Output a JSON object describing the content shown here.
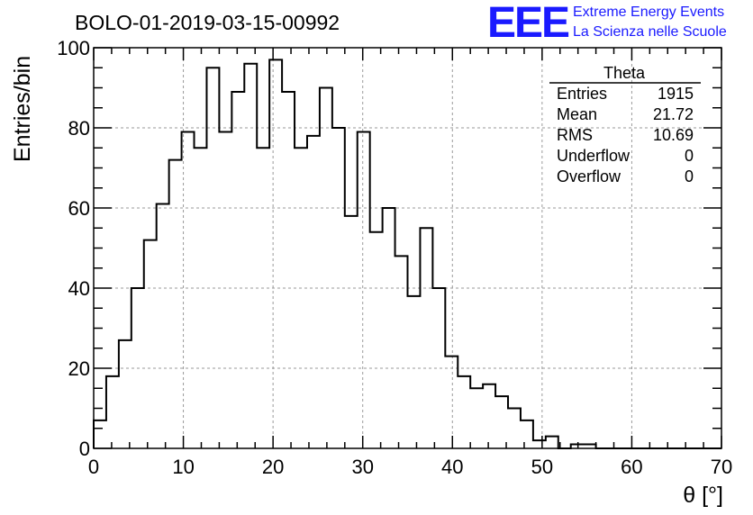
{
  "chart_data": {
    "type": "bar",
    "title": "BOLO-01-2019-03-15-00992",
    "xlabel": "θ [°]",
    "ylabel": "Entries/bin",
    "xlim": [
      0,
      70
    ],
    "ylim": [
      0,
      100
    ],
    "x_ticks": [
      0,
      10,
      20,
      30,
      40,
      50,
      60,
      70
    ],
    "y_ticks": [
      0,
      20,
      40,
      60,
      80,
      100
    ],
    "grid": true,
    "bin_width": 1.4,
    "bin_edges_start": 0,
    "values": [
      7,
      18,
      27,
      40,
      52,
      61,
      72,
      79,
      75,
      95,
      79,
      89,
      96,
      75,
      97,
      89,
      75,
      78,
      90,
      80,
      58,
      79,
      54,
      60,
      48,
      38,
      55,
      40,
      23,
      18,
      15,
      16,
      13,
      10,
      7,
      2,
      3,
      0,
      1,
      1,
      0,
      0,
      0,
      0,
      0,
      0,
      0,
      0,
      0,
      0
    ],
    "stats_box": {
      "name": "Theta",
      "rows": [
        {
          "label": "Entries",
          "value": "1915"
        },
        {
          "label": "Mean",
          "value": "21.72"
        },
        {
          "label": "RMS",
          "value": "10.69"
        },
        {
          "label": "Underflow",
          "value": "0"
        },
        {
          "label": "Overflow",
          "value": "0"
        }
      ]
    },
    "line_color": "#000000",
    "grid_color": "#9a9a9a"
  },
  "logo": {
    "mark": "EEE",
    "line1": "Extreme Energy Events",
    "line2": "La Scienza nelle Scuole",
    "color": "#1a1aff"
  }
}
